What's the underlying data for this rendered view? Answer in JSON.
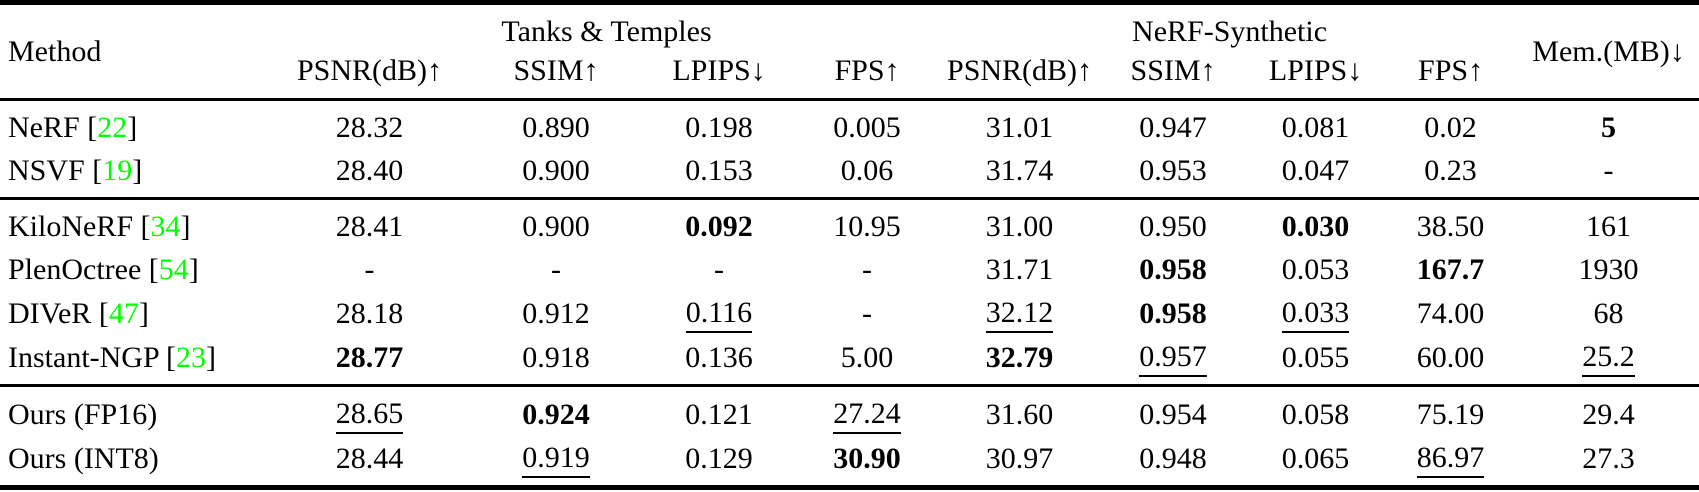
{
  "table": {
    "citation_color": "#00ff00",
    "header": {
      "method": "Method",
      "mem": "Mem.(MB)↓",
      "groups": [
        {
          "title": "Tanks & Temples",
          "cols": [
            "PSNR(dB)↑",
            "SSIM↑",
            "LPIPS↓",
            "FPS↑"
          ]
        },
        {
          "title": "NeRF-Synthetic",
          "cols": [
            "PSNR(dB)↑",
            "SSIM↑",
            "LPIPS↓",
            "FPS↑"
          ]
        }
      ]
    },
    "groups": [
      {
        "rows": [
          {
            "method": "NeRF",
            "cite": "22",
            "cells": [
              {
                "t": "28.32"
              },
              {
                "t": "0.890"
              },
              {
                "t": "0.198"
              },
              {
                "t": "0.005"
              },
              {
                "t": "31.01"
              },
              {
                "t": "0.947"
              },
              {
                "t": "0.081"
              },
              {
                "t": "0.02"
              },
              {
                "t": "5",
                "b": true
              }
            ]
          },
          {
            "method": "NSVF",
            "cite": "19",
            "cells": [
              {
                "t": "28.40"
              },
              {
                "t": "0.900"
              },
              {
                "t": "0.153"
              },
              {
                "t": "0.06"
              },
              {
                "t": "31.74"
              },
              {
                "t": "0.953"
              },
              {
                "t": "0.047"
              },
              {
                "t": "0.23"
              },
              {
                "t": "-"
              }
            ]
          }
        ]
      },
      {
        "rows": [
          {
            "method": "KiloNeRF",
            "cite": "34",
            "cells": [
              {
                "t": "28.41"
              },
              {
                "t": "0.900"
              },
              {
                "t": "0.092",
                "b": true
              },
              {
                "t": "10.95"
              },
              {
                "t": "31.00"
              },
              {
                "t": "0.950"
              },
              {
                "t": "0.030",
                "b": true
              },
              {
                "t": "38.50"
              },
              {
                "t": "161"
              }
            ]
          },
          {
            "method": "PlenOctree",
            "cite": "54",
            "cells": [
              {
                "t": "-"
              },
              {
                "t": "-"
              },
              {
                "t": "-"
              },
              {
                "t": "-"
              },
              {
                "t": "31.71"
              },
              {
                "t": "0.958",
                "b": true
              },
              {
                "t": "0.053"
              },
              {
                "t": "167.7",
                "b": true
              },
              {
                "t": "1930"
              }
            ]
          },
          {
            "method": "DIVeR",
            "cite": "47",
            "cells": [
              {
                "t": "28.18"
              },
              {
                "t": "0.912"
              },
              {
                "t": "0.116",
                "u": true
              },
              {
                "t": "-"
              },
              {
                "t": "32.12",
                "u": true
              },
              {
                "t": "0.958",
                "b": true
              },
              {
                "t": "0.033",
                "u": true
              },
              {
                "t": "74.00"
              },
              {
                "t": "68"
              }
            ]
          },
          {
            "method": "Instant-NGP",
            "cite": "23",
            "cells": [
              {
                "t": "28.77",
                "b": true
              },
              {
                "t": "0.918"
              },
              {
                "t": "0.136"
              },
              {
                "t": "5.00"
              },
              {
                "t": "32.79",
                "b": true
              },
              {
                "t": "0.957",
                "u": true
              },
              {
                "t": "0.055"
              },
              {
                "t": "60.00"
              },
              {
                "t": "25.2",
                "u": true
              }
            ]
          }
        ]
      },
      {
        "rows": [
          {
            "method": "Ours (FP16)",
            "cells": [
              {
                "t": "28.65",
                "u": true
              },
              {
                "t": "0.924",
                "b": true
              },
              {
                "t": "0.121"
              },
              {
                "t": "27.24",
                "u": true
              },
              {
                "t": "31.60"
              },
              {
                "t": "0.954"
              },
              {
                "t": "0.058"
              },
              {
                "t": "75.19"
              },
              {
                "t": "29.4"
              }
            ]
          },
          {
            "method": "Ours (INT8)",
            "cells": [
              {
                "t": "28.44"
              },
              {
                "t": "0.919",
                "u": true
              },
              {
                "t": "0.129"
              },
              {
                "t": "30.90",
                "b": true
              },
              {
                "t": "30.97"
              },
              {
                "t": "0.948"
              },
              {
                "t": "0.065"
              },
              {
                "t": "86.97",
                "u": true
              },
              {
                "t": "27.3"
              }
            ]
          }
        ]
      }
    ]
  }
}
